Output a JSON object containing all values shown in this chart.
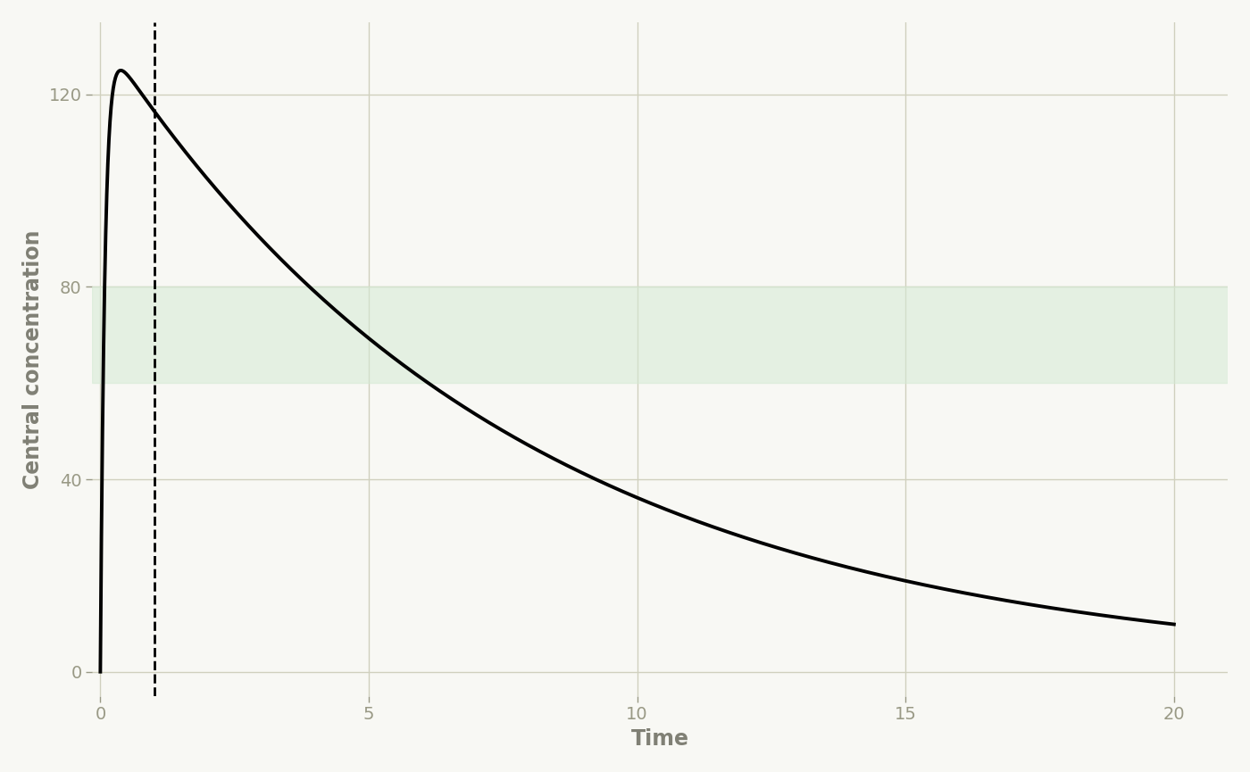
{
  "title": "",
  "xlabel": "Time",
  "ylabel": "Central concentration",
  "xlim": [
    -0.15,
    21
  ],
  "ylim": [
    -5,
    135
  ],
  "xticks": [
    0,
    5,
    10,
    15,
    20
  ],
  "yticks": [
    0,
    40,
    80,
    120
  ],
  "target_low": 60,
  "target_high": 80,
  "vline_x": 1,
  "ribbon_color": "#d4ead4",
  "ribbon_alpha": 0.55,
  "line_color": "#000000",
  "line_width": 2.8,
  "vline_color": "#000000",
  "vline_style": "--",
  "background_color": "#f8f8f4",
  "grid_color": "#d0d0be",
  "tick_color": "#999985",
  "label_color": "#808075",
  "xlabel_fontsize": 17,
  "ylabel_fontsize": 17,
  "tick_fontsize": 14,
  "ka": 12.0,
  "ke": 0.13,
  "peak_value": 125.0,
  "t_max": 20
}
